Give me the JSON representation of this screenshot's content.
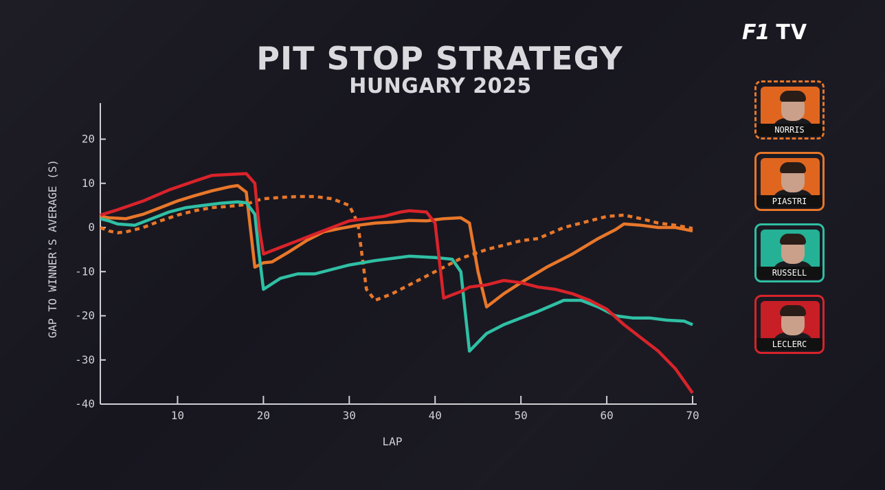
{
  "header": {
    "title": "PIT STOP STRATEGY",
    "subtitle": "HUNGARY 2025",
    "logo_f1": "F1",
    "logo_tv": "TV"
  },
  "drivers": [
    {
      "name": "NORRIS",
      "color": "#e8772a",
      "bg": "#e0661f",
      "border_style": "dashed"
    },
    {
      "name": "PIASTRI",
      "color": "#e8772a",
      "bg": "#e0661f",
      "border_style": "solid"
    },
    {
      "name": "RUSSELL",
      "color": "#2fbfa4",
      "bg": "#25b196",
      "border_style": "solid"
    },
    {
      "name": "LECLERC",
      "color": "#d9232a",
      "bg": "#c81e26",
      "border_style": "solid"
    }
  ],
  "chart_data": {
    "type": "line",
    "title": "PIT STOP STRATEGY",
    "subtitle": "HUNGARY 2025",
    "xlabel": "LAP",
    "ylabel": "GAP TO WINNER'S AVERAGE (S)",
    "xlim": [
      1,
      70
    ],
    "ylim": [
      -40,
      28
    ],
    "xticks": [
      10,
      20,
      30,
      40,
      50,
      60,
      70
    ],
    "yticks": [
      -40,
      -30,
      -20,
      -10,
      0,
      10,
      20
    ],
    "grid": false,
    "legend": "right",
    "series": [
      {
        "name": "NORRIS",
        "color": "#e8772a",
        "dash": true,
        "points": [
          [
            1,
            0
          ],
          [
            2,
            -0.8
          ],
          [
            3,
            -1.2
          ],
          [
            4,
            -1
          ],
          [
            5,
            -0.5
          ],
          [
            6,
            0
          ],
          [
            8,
            1.5
          ],
          [
            10,
            2.8
          ],
          [
            12,
            3.8
          ],
          [
            14,
            4.5
          ],
          [
            16,
            4.8
          ],
          [
            18,
            5.2
          ],
          [
            19,
            6
          ],
          [
            20,
            6.5
          ],
          [
            22,
            6.8
          ],
          [
            24,
            7
          ],
          [
            26,
            7
          ],
          [
            28,
            6.5
          ],
          [
            30,
            5
          ],
          [
            31,
            1
          ],
          [
            32,
            -14
          ],
          [
            33,
            -16.5
          ],
          [
            35,
            -15
          ],
          [
            37,
            -13
          ],
          [
            40,
            -10
          ],
          [
            43,
            -7
          ],
          [
            46,
            -5
          ],
          [
            48,
            -4
          ],
          [
            50,
            -3
          ],
          [
            52,
            -2.5
          ],
          [
            55,
            0
          ],
          [
            58,
            1.5
          ],
          [
            60,
            2.5
          ],
          [
            62,
            2.8
          ],
          [
            64,
            2
          ],
          [
            66,
            1
          ],
          [
            68,
            0.5
          ],
          [
            70,
            -0.2
          ]
        ]
      },
      {
        "name": "PIASTRI",
        "color": "#e8772a",
        "dash": false,
        "points": [
          [
            1,
            2.5
          ],
          [
            2,
            2.2
          ],
          [
            4,
            2
          ],
          [
            6,
            3
          ],
          [
            8,
            4.5
          ],
          [
            10,
            6
          ],
          [
            12,
            7.2
          ],
          [
            14,
            8.3
          ],
          [
            16,
            9.2
          ],
          [
            17,
            9.5
          ],
          [
            18,
            8
          ],
          [
            19,
            -9
          ],
          [
            20,
            -8
          ],
          [
            21,
            -7.8
          ],
          [
            23,
            -5.5
          ],
          [
            25,
            -3
          ],
          [
            27,
            -1
          ],
          [
            29,
            -0.2
          ],
          [
            31,
            0.5
          ],
          [
            33,
            1
          ],
          [
            35,
            1.2
          ],
          [
            37,
            1.6
          ],
          [
            39,
            1.5
          ],
          [
            41,
            2
          ],
          [
            43,
            2.2
          ],
          [
            44,
            1
          ],
          [
            45,
            -10
          ],
          [
            46,
            -18
          ],
          [
            48,
            -15
          ],
          [
            50,
            -12.5
          ],
          [
            53,
            -9
          ],
          [
            56,
            -6
          ],
          [
            59,
            -2.5
          ],
          [
            61,
            -0.5
          ],
          [
            62,
            0.8
          ],
          [
            64,
            0.5
          ],
          [
            66,
            0
          ],
          [
            68,
            0
          ],
          [
            70,
            -0.8
          ]
        ]
      },
      {
        "name": "RUSSELL",
        "color": "#2fbfa4",
        "dash": false,
        "points": [
          [
            1,
            2
          ],
          [
            2,
            1.5
          ],
          [
            3,
            0.8
          ],
          [
            5,
            0.5
          ],
          [
            7,
            2
          ],
          [
            9,
            3.5
          ],
          [
            11,
            4.5
          ],
          [
            13,
            5
          ],
          [
            15,
            5.5
          ],
          [
            17,
            5.8
          ],
          [
            18,
            5.6
          ],
          [
            19,
            3
          ],
          [
            19.5,
            -6
          ],
          [
            20,
            -14
          ],
          [
            22,
            -11.5
          ],
          [
            24,
            -10.5
          ],
          [
            26,
            -10.5
          ],
          [
            28,
            -9.5
          ],
          [
            30,
            -8.5
          ],
          [
            33,
            -7.5
          ],
          [
            35,
            -7
          ],
          [
            37,
            -6.5
          ],
          [
            40,
            -6.8
          ],
          [
            42,
            -7.2
          ],
          [
            43,
            -10
          ],
          [
            44,
            -28
          ],
          [
            46,
            -24
          ],
          [
            48,
            -22
          ],
          [
            50,
            -20.5
          ],
          [
            52,
            -19
          ],
          [
            55,
            -16.5
          ],
          [
            57,
            -16.5
          ],
          [
            59,
            -18
          ],
          [
            61,
            -20
          ],
          [
            63,
            -20.5
          ],
          [
            65,
            -20.5
          ],
          [
            67,
            -21
          ],
          [
            69,
            -21.2
          ],
          [
            70,
            -22
          ]
        ]
      },
      {
        "name": "LECLERC",
        "color": "#d9232a",
        "dash": false,
        "points": [
          [
            1,
            2.8
          ],
          [
            3,
            4
          ],
          [
            6,
            6
          ],
          [
            9,
            8.5
          ],
          [
            12,
            10.5
          ],
          [
            14,
            11.8
          ],
          [
            16,
            12
          ],
          [
            18,
            12.2
          ],
          [
            19,
            10
          ],
          [
            19.5,
            0
          ],
          [
            20,
            -6
          ],
          [
            22,
            -4.5
          ],
          [
            24,
            -3
          ],
          [
            26,
            -1.5
          ],
          [
            28,
            0
          ],
          [
            30,
            1.5
          ],
          [
            32,
            2
          ],
          [
            34,
            2.5
          ],
          [
            36,
            3.5
          ],
          [
            37,
            3.8
          ],
          [
            39,
            3.5
          ],
          [
            40,
            1
          ],
          [
            41,
            -16
          ],
          [
            43,
            -14.5
          ],
          [
            44,
            -13.5
          ],
          [
            46,
            -13
          ],
          [
            48,
            -12
          ],
          [
            50,
            -12.5
          ],
          [
            52,
            -13.5
          ],
          [
            54,
            -14
          ],
          [
            56,
            -15
          ],
          [
            58,
            -16.5
          ],
          [
            60,
            -18.5
          ],
          [
            62,
            -22
          ],
          [
            64,
            -25
          ],
          [
            66,
            -28
          ],
          [
            68,
            -32
          ],
          [
            70,
            -37.5
          ]
        ]
      }
    ]
  }
}
